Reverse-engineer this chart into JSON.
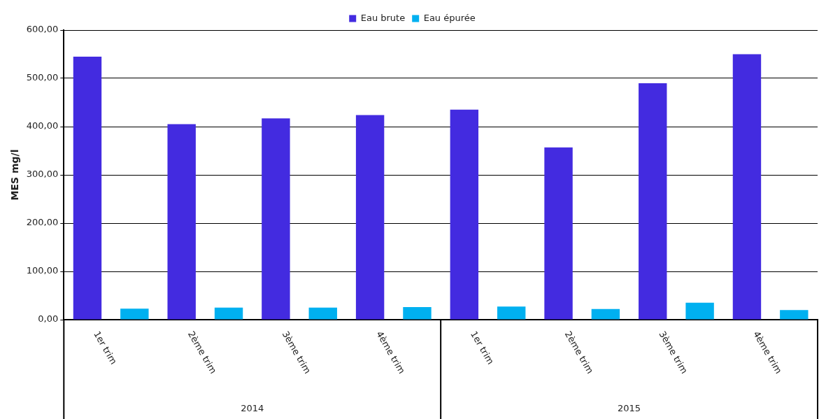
{
  "chart_data": {
    "type": "bar",
    "ylabel": "MES mg/l",
    "categories": [
      "1er trim",
      "2ème trim",
      "3ème trim",
      "4ème trim",
      "1er trim",
      "2ème trim",
      "3ème trim",
      "4ème trim"
    ],
    "series": [
      {
        "name": "Eau brute",
        "color": "#432be0",
        "values": [
          545,
          405,
          417,
          424,
          435,
          357,
          490,
          550
        ]
      },
      {
        "name": "Eau épurée",
        "color": "#00b0f0",
        "values": [
          23,
          25,
          25,
          26,
          27,
          22,
          35,
          20
        ]
      }
    ],
    "annotations": [
      "2014",
      "2015"
    ],
    "ylim": [
      0,
      600
    ],
    "yticks": [
      {
        "value": 0,
        "label": "0,00"
      },
      {
        "value": 100,
        "label": "100,00"
      },
      {
        "value": 200,
        "label": "200,00"
      },
      {
        "value": 300,
        "label": "300,00"
      },
      {
        "value": 400,
        "label": "400,00"
      },
      {
        "value": 500,
        "label": "500,00"
      },
      {
        "value": 600,
        "label": "600,00"
      }
    ],
    "grid": "y",
    "legend": "top"
  }
}
